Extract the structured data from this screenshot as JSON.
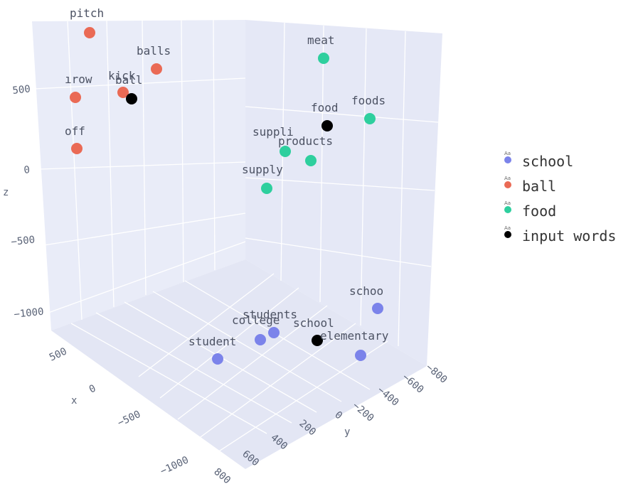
{
  "chart_data": {
    "type": "scatter",
    "title": "",
    "xlabel": "x",
    "ylabel": "y",
    "zlabel": "z",
    "x_ticks": [
      "500",
      "0",
      "−500",
      "−1000"
    ],
    "y_ticks": [
      "800",
      "600",
      "400",
      "200",
      "0",
      "−200",
      "−400",
      "−600",
      "−800"
    ],
    "z_ticks": [
      "500",
      "0",
      "−500",
      "−1000"
    ],
    "legend_position": "right",
    "series": [
      {
        "name": "school",
        "color": "#7b83ea",
        "points": [
          {
            "label": "student"
          },
          {
            "label": "college"
          },
          {
            "label": "students"
          },
          {
            "label": "elementary"
          },
          {
            "label": "schoo"
          }
        ]
      },
      {
        "name": "ball",
        "color": "#ea6a55",
        "points": [
          {
            "label": "pitch"
          },
          {
            "label": "balls"
          },
          {
            "label": "kick"
          },
          {
            "label": "ırow"
          },
          {
            "label": "off"
          }
        ]
      },
      {
        "name": "food",
        "color": "#2ecf9e",
        "points": [
          {
            "label": "meat"
          },
          {
            "label": "foods"
          },
          {
            "label": "suppli"
          },
          {
            "label": "products"
          },
          {
            "label": "supply"
          }
        ]
      },
      {
        "name": "input words",
        "color": "#000000",
        "points": [
          {
            "label": "ball"
          },
          {
            "label": "food"
          },
          {
            "label": "school"
          }
        ]
      }
    ]
  },
  "legend": {
    "icon_text": "Aa",
    "items": [
      "school",
      "ball",
      "food",
      "input words"
    ]
  }
}
